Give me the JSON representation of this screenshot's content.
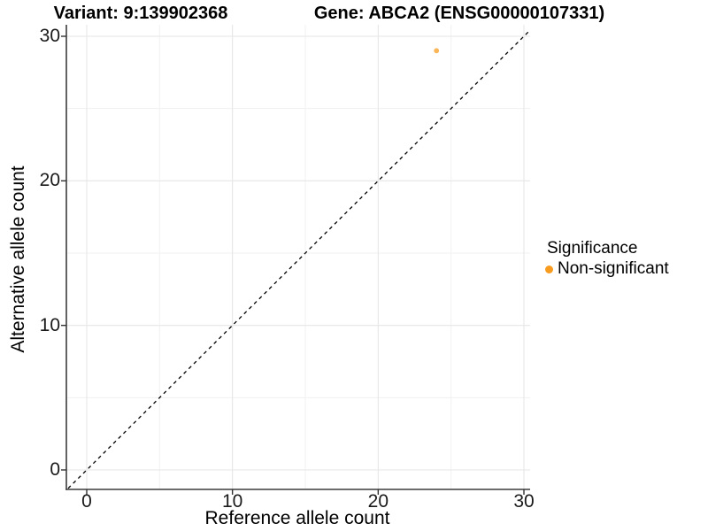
{
  "titles": {
    "variant": "Variant: 9:139902368",
    "gene": "Gene: ABCA2 (ENSG00000107331)"
  },
  "axes": {
    "x": {
      "label": "Reference allele count",
      "ticks": [
        "0",
        "10",
        "20",
        "30"
      ]
    },
    "y": {
      "label": "Alternative allele count",
      "ticks": [
        "0",
        "10",
        "20",
        "30"
      ]
    }
  },
  "legend": {
    "title": "Significance",
    "items": [
      {
        "label": "Non-significant",
        "color": "#F89C20",
        "marker": "dot-icon"
      }
    ]
  },
  "chart_data": {
    "type": "scatter",
    "title": "Variant: 9:139902368   Gene: ABCA2 (ENSG00000107331)",
    "xlabel": "Reference allele count",
    "ylabel": "Alternative allele count",
    "xlim": [
      -1.4,
      30.4
    ],
    "ylim": [
      -1.35,
      30.8
    ],
    "x_ticks": [
      0,
      10,
      20,
      30
    ],
    "y_ticks": [
      0,
      10,
      20,
      30
    ],
    "x_minor_ticks": [
      5,
      15,
      25
    ],
    "y_minor_ticks": [
      5,
      15,
      25
    ],
    "grid": true,
    "legend_position": "right",
    "series": [
      {
        "name": "Non-significant",
        "color": "#F89C20",
        "point_opacity": 0.75,
        "points": [
          {
            "x": 24,
            "y": 29
          }
        ]
      }
    ],
    "reference_line": {
      "type": "identity y=x",
      "slope": 1,
      "intercept": 0,
      "style": "dashed",
      "color": "#000000"
    }
  },
  "colors": {
    "background": "#ffffff",
    "grid_major": "#e6e6e6",
    "grid_minor": "#f1f1f1",
    "axis_line": "#3c3c3c",
    "tick_mark": "#333333",
    "point": "#F89C20"
  }
}
